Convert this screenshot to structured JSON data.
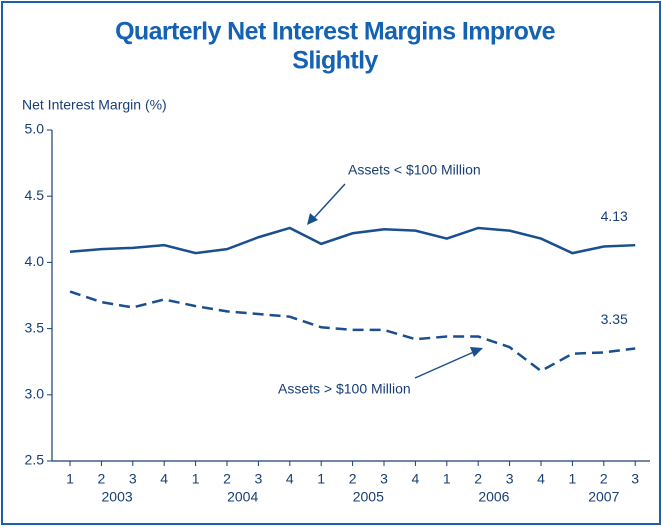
{
  "chart_data": {
    "type": "line",
    "title": [
      "Quarterly Net Interest Margins Improve",
      "Slightly"
    ],
    "y_label": "Net Interest Margin (%)",
    "categories": [
      "1",
      "2",
      "3",
      "4",
      "1",
      "2",
      "3",
      "4",
      "1",
      "2",
      "3",
      "4",
      "1",
      "2",
      "3",
      "4",
      "1",
      "2",
      "3"
    ],
    "year_groups": [
      "2003",
      "2004",
      "2005",
      "2006",
      "2007"
    ],
    "series": [
      {
        "name": "Assets < $100 Million",
        "color": "#1a4f8f",
        "dash": false,
        "values": [
          4.08,
          4.1,
          4.11,
          4.13,
          4.07,
          4.1,
          4.19,
          4.26,
          4.14,
          4.22,
          4.25,
          4.24,
          4.18,
          4.26,
          4.24,
          4.18,
          4.07,
          4.12,
          4.13
        ]
      },
      {
        "name": "Assets > $100 Million",
        "color": "#1a4f8f",
        "dash": true,
        "values": [
          3.78,
          3.7,
          3.66,
          3.72,
          3.67,
          3.63,
          3.61,
          3.59,
          3.51,
          3.49,
          3.49,
          3.42,
          3.44,
          3.44,
          3.36,
          3.18,
          3.31,
          3.32,
          3.35
        ]
      }
    ],
    "ylim": [
      2.5,
      5.0
    ],
    "yticks": [
      2.5,
      {
        "value": 3,
        "label": "3.0"
      },
      3.5,
      {
        "value": 4,
        "label": "4.0"
      },
      4.5,
      {
        "value": 5,
        "label": "5.0"
      }
    ],
    "grid": false
  }
}
